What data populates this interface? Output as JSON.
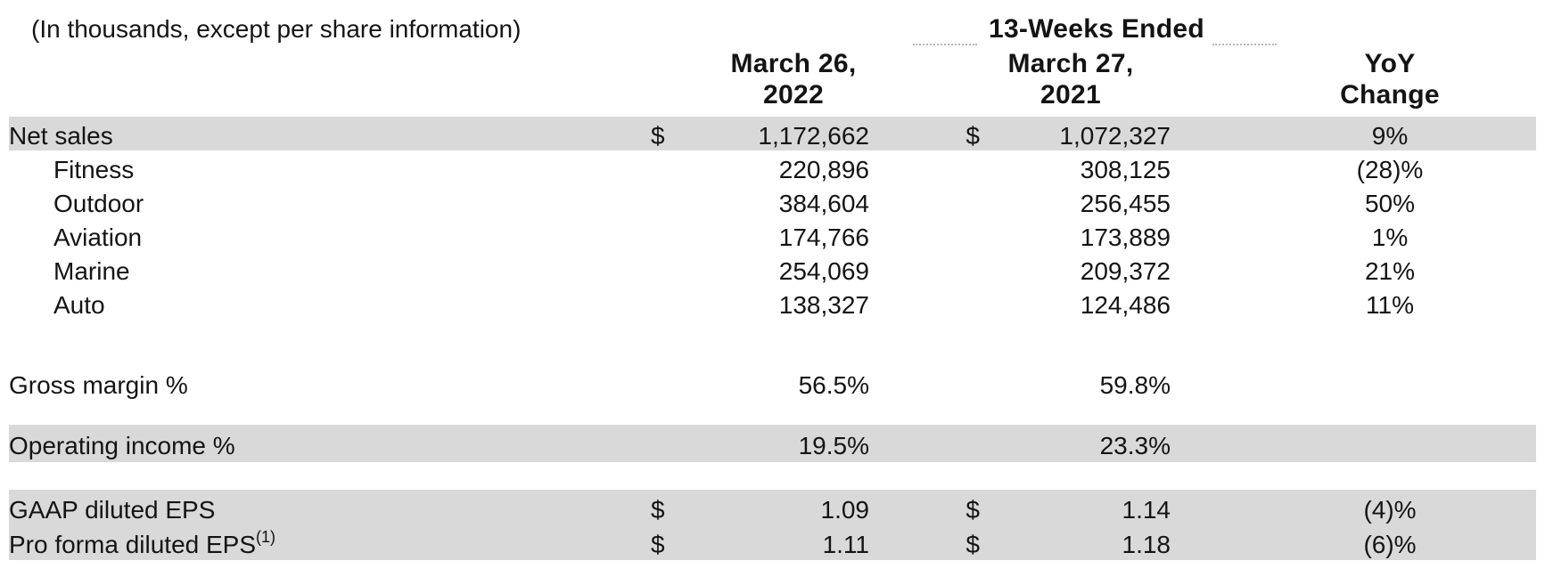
{
  "caption": "(In thousands, except per share information)",
  "table": {
    "period_header": "13-Weeks Ended",
    "columns": [
      {
        "line1": "March 26,",
        "line2": "2022"
      },
      {
        "line1": "March 27,",
        "line2": "2021"
      },
      {
        "line1": "YoY",
        "line2": "Change"
      }
    ],
    "rows": [
      {
        "kind": "data",
        "label": "Net sales",
        "dollar1": "$",
        "value1": "1,172,662",
        "dollar2": "$",
        "value2": "1,072,327",
        "yoy": "9%",
        "shaded": true
      },
      {
        "kind": "data",
        "label": "Fitness",
        "indent": true,
        "value1": "220,896",
        "value2": "308,125",
        "yoy": "(28)%"
      },
      {
        "kind": "data",
        "label": "Outdoor",
        "indent": true,
        "value1": "384,604",
        "value2": "256,455",
        "yoy": "50%"
      },
      {
        "kind": "data",
        "label": "Aviation",
        "indent": true,
        "value1": "174,766",
        "value2": "173,889",
        "yoy": "1%"
      },
      {
        "kind": "data",
        "label": "Marine",
        "indent": true,
        "value1": "254,069",
        "value2": "209,372",
        "yoy": "21%"
      },
      {
        "kind": "data",
        "label": "Auto",
        "indent": true,
        "value1": "138,327",
        "value2": "124,486",
        "yoy": "11%"
      },
      {
        "kind": "blank"
      },
      {
        "kind": "data",
        "label": "Gross margin %",
        "value1": "56.5%",
        "value2": "59.8%",
        "percent": true
      },
      {
        "kind": "blank"
      },
      {
        "kind": "data",
        "label": "Operating income %",
        "value1": "19.5%",
        "value2": "23.3%",
        "shaded": true,
        "percent": true
      },
      {
        "kind": "blank"
      },
      {
        "kind": "data",
        "label": "GAAP diluted EPS",
        "dollar1": "$",
        "value1": "1.09",
        "dollar2": "$",
        "value2": "1.14",
        "yoy": "(4)%",
        "shaded": true
      },
      {
        "kind": "data",
        "label": "Pro forma diluted EPS",
        "label_sup": "(1)",
        "dollar1": "$",
        "value1": "1.11",
        "dollar2": "$",
        "value2": "1.18",
        "yoy": "(6)%",
        "shaded": true
      }
    ]
  },
  "colors": {
    "row_shade": "#d9d9d9",
    "text_color": "#141414"
  }
}
